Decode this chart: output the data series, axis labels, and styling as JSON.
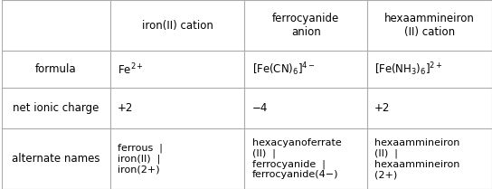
{
  "col_headers": [
    "iron(II) cation",
    "ferrocyanide\nanion",
    "hexaammineiron\n(II) cation"
  ],
  "row_headers": [
    "formula",
    "net ionic charge",
    "alternate names"
  ],
  "formulas": [
    "Fe$^{2+}$",
    "[Fe(CN)$_6$]$^{4-}$",
    "[Fe(NH$_3$)$_6$]$^{2+}$"
  ],
  "charges": [
    "+2",
    "−4",
    "+2"
  ],
  "alt_names": [
    "ferrous  |\niron(II)  |\niron(2+)",
    "hexacyanoferrate\n(II)  |\nferrocyanide  |\nferrocyanide(4−)",
    "hexaammineiron\n(II)  |\nhexaammineiron\n(2+)"
  ],
  "bg_color": "#ffffff",
  "grid_color": "#aaaaaa",
  "text_color": "#000000",
  "font_size": 8.5,
  "col_bounds": [
    0.0,
    0.22,
    0.495,
    0.745,
    1.0
  ],
  "row_bounds": [
    1.0,
    0.73,
    0.535,
    0.32,
    0.0
  ]
}
